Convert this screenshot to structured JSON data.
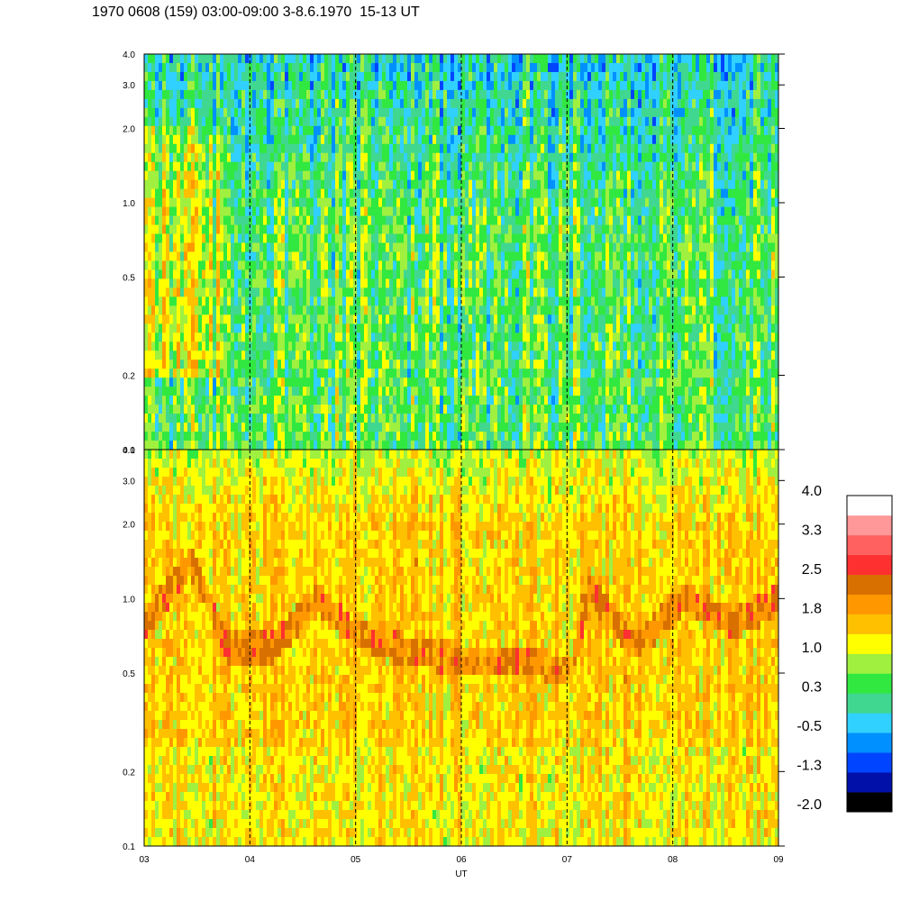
{
  "title": "1970 0608 (159) 03:00-09:00 3-8.6.1970  15-13 UT",
  "chart_data": {
    "type": "heatmap",
    "xlabel": "UT",
    "x_ticks": [
      "03",
      "04",
      "05",
      "06",
      "07",
      "08",
      "09"
    ],
    "x_range": [
      3,
      9
    ],
    "y_scale": "log",
    "y_range": [
      0.1,
      4.0
    ],
    "y_ticks": [
      "0.1",
      "0.2",
      "0.5",
      "1.0",
      "2.0",
      "3.0",
      "4.0"
    ],
    "panels": [
      {
        "name": "upper",
        "dominant_level": 0.3
      },
      {
        "name": "lower",
        "dominant_level": 1.8
      }
    ],
    "colorbar": {
      "labels": [
        "4.0",
        "3.3",
        "2.5",
        "1.8",
        "1.0",
        "0.3",
        "-0.5",
        "-1.3",
        "-2.0"
      ],
      "colors": [
        "#000000",
        "#0010a8",
        "#0044ff",
        "#0090ff",
        "#30d0ff",
        "#40d890",
        "#30e840",
        "#a0f040",
        "#ffff00",
        "#ffc000",
        "#ff9800",
        "#d87000",
        "#ff3030",
        "#ff6060",
        "#ff9898",
        "#ffffff"
      ]
    }
  }
}
